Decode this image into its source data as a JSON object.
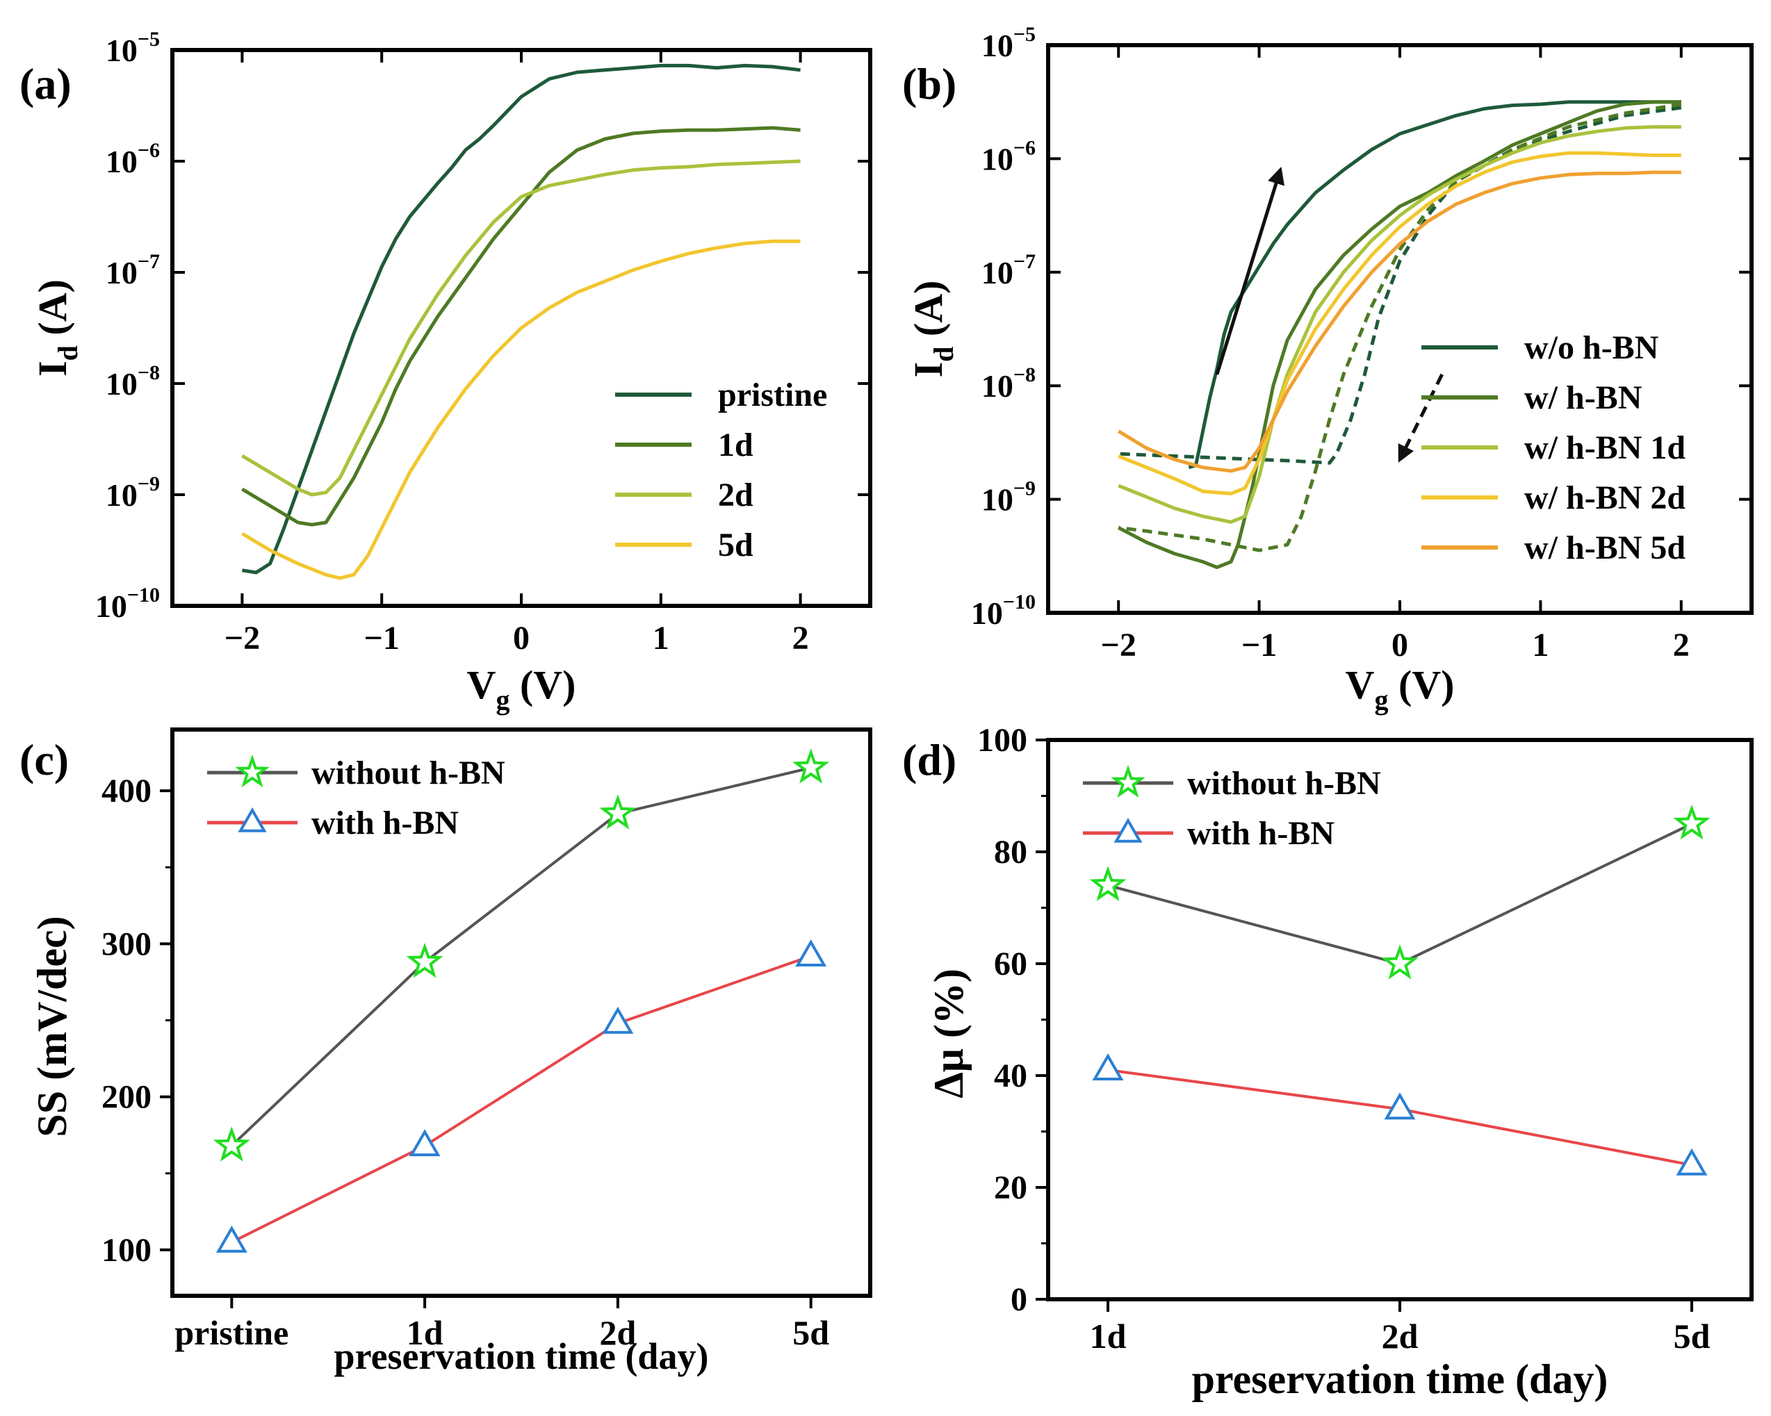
{
  "chart_data": [
    {
      "panel": "a",
      "label": "(a)",
      "type": "line",
      "yscale": "log",
      "xlabel": "V",
      "xlabel_sub": "g",
      "xlabel_unit": " (V)",
      "ylabel": "I",
      "ylabel_sub": "d",
      "ylabel_unit": " (A)",
      "xlim": [
        -2.5,
        2.5
      ],
      "ylim_exp": [
        -10,
        -5
      ],
      "xticks": [
        -2,
        -1,
        0,
        1,
        2
      ],
      "xtick_labels": [
        "−2",
        "−1",
        "0",
        "1",
        "2"
      ],
      "yticks_exp": [
        -10,
        -9,
        -8,
        -7,
        -6,
        -5
      ],
      "ytick_base": "10",
      "ytick_exps": [
        "−10",
        "−9",
        "−8",
        "−7",
        "−6",
        "−5"
      ],
      "legend_position": "lower-right",
      "series": [
        {
          "name": "pristine",
          "color": "#1e5a3a",
          "dashed": false,
          "x": [
            -2.0,
            -1.9,
            -1.8,
            -1.7,
            -1.6,
            -1.5,
            -1.4,
            -1.3,
            -1.2,
            -1.1,
            -1.0,
            -0.9,
            -0.8,
            -0.7,
            -0.6,
            -0.5,
            -0.4,
            -0.3,
            -0.2,
            -0.1,
            0.0,
            0.2,
            0.4,
            0.6,
            0.8,
            1.0,
            1.2,
            1.4,
            1.6,
            1.8,
            2.0
          ],
          "logy": [
            -9.68,
            -9.7,
            -9.62,
            -9.3,
            -8.95,
            -8.6,
            -8.25,
            -7.9,
            -7.55,
            -7.25,
            -6.95,
            -6.7,
            -6.5,
            -6.35,
            -6.2,
            -6.06,
            -5.9,
            -5.8,
            -5.68,
            -5.55,
            -5.42,
            -5.26,
            -5.2,
            -5.18,
            -5.16,
            -5.14,
            -5.14,
            -5.16,
            -5.14,
            -5.15,
            -5.18
          ]
        },
        {
          "name": "1d",
          "color": "#4e7a24",
          "dashed": false,
          "x": [
            -2.0,
            -1.8,
            -1.6,
            -1.5,
            -1.4,
            -1.3,
            -1.2,
            -1.1,
            -1.0,
            -0.9,
            -0.8,
            -0.6,
            -0.4,
            -0.2,
            0.0,
            0.2,
            0.4,
            0.6,
            0.8,
            1.0,
            1.2,
            1.4,
            1.6,
            1.8,
            2.0
          ],
          "logy": [
            -8.95,
            -9.1,
            -9.25,
            -9.27,
            -9.25,
            -9.05,
            -8.85,
            -8.6,
            -8.35,
            -8.05,
            -7.8,
            -7.4,
            -7.05,
            -6.7,
            -6.4,
            -6.1,
            -5.9,
            -5.8,
            -5.75,
            -5.73,
            -5.72,
            -5.72,
            -5.71,
            -5.7,
            -5.72
          ]
        },
        {
          "name": "2d",
          "color": "#a9c23c",
          "dashed": false,
          "x": [
            -2.0,
            -1.8,
            -1.6,
            -1.5,
            -1.4,
            -1.3,
            -1.2,
            -1.1,
            -1.0,
            -0.9,
            -0.8,
            -0.6,
            -0.4,
            -0.2,
            0.0,
            0.2,
            0.4,
            0.6,
            0.8,
            1.0,
            1.2,
            1.4,
            1.6,
            1.8,
            2.0
          ],
          "logy": [
            -8.65,
            -8.8,
            -8.95,
            -9.0,
            -8.98,
            -8.85,
            -8.6,
            -8.35,
            -8.1,
            -7.85,
            -7.6,
            -7.2,
            -6.85,
            -6.55,
            -6.32,
            -6.22,
            -6.17,
            -6.12,
            -6.08,
            -6.06,
            -6.05,
            -6.03,
            -6.02,
            -6.01,
            -6.0
          ]
        },
        {
          "name": "5d",
          "color": "#f2c62e",
          "dashed": false,
          "x": [
            -2.0,
            -1.8,
            -1.6,
            -1.4,
            -1.3,
            -1.2,
            -1.1,
            -1.0,
            -0.9,
            -0.8,
            -0.6,
            -0.4,
            -0.2,
            0.0,
            0.2,
            0.4,
            0.6,
            0.8,
            1.0,
            1.2,
            1.4,
            1.6,
            1.8,
            2.0
          ],
          "logy": [
            -9.35,
            -9.5,
            -9.62,
            -9.72,
            -9.75,
            -9.72,
            -9.55,
            -9.3,
            -9.05,
            -8.8,
            -8.4,
            -8.05,
            -7.75,
            -7.5,
            -7.32,
            -7.18,
            -7.08,
            -6.98,
            -6.9,
            -6.83,
            -6.78,
            -6.74,
            -6.72,
            -6.72
          ]
        }
      ]
    },
    {
      "panel": "b",
      "label": "(b)",
      "type": "line",
      "yscale": "log",
      "xlabel": "V",
      "xlabel_sub": "g",
      "xlabel_unit": " (V)",
      "ylabel": "I",
      "ylabel_sub": "d",
      "ylabel_unit": " (A)",
      "xlim": [
        -2.5,
        2.5
      ],
      "ylim_exp": [
        -10,
        -5
      ],
      "xticks": [
        -2,
        -1,
        0,
        1,
        2
      ],
      "xtick_labels": [
        "−2",
        "−1",
        "0",
        "1",
        "2"
      ],
      "yticks_exp": [
        -10,
        -9,
        -8,
        -7,
        -6,
        -5
      ],
      "ytick_base": "10",
      "ytick_exps": [
        "−10",
        "−9",
        "−8",
        "−7",
        "−6",
        "−5"
      ],
      "legend_position": "lower-right",
      "annotations": [
        {
          "kind": "arrow",
          "style": "solid",
          "from": [
            -1.3,
            -7.9
          ],
          "to": [
            -0.85,
            -6.1
          ]
        },
        {
          "kind": "arrow",
          "style": "dashed",
          "from": [
            0.3,
            -7.9
          ],
          "to": [
            0.0,
            -8.65
          ]
        }
      ],
      "series": [
        {
          "name": "w/o h-BN",
          "color": "#1e5a3a",
          "dashed": false,
          "x": [
            -1.5,
            -1.45,
            -1.4,
            -1.35,
            -1.3,
            -1.25,
            -1.2,
            -1.1,
            -1.0,
            -0.9,
            -0.8,
            -0.6,
            -0.4,
            -0.2,
            0.0,
            0.2,
            0.4,
            0.6,
            0.8,
            1.0,
            1.2,
            1.4,
            1.6,
            1.8,
            2.0
          ],
          "logy": [
            -8.72,
            -8.7,
            -8.4,
            -8.1,
            -7.85,
            -7.55,
            -7.35,
            -7.15,
            -6.95,
            -6.75,
            -6.58,
            -6.3,
            -6.1,
            -5.92,
            -5.78,
            -5.7,
            -5.62,
            -5.56,
            -5.53,
            -5.52,
            -5.5,
            -5.5,
            -5.5,
            -5.5,
            -5.5
          ]
        },
        {
          "name": "w/o h-BN (reverse)",
          "color": "#1e5a3a",
          "dashed": true,
          "in_legend": false,
          "x": [
            2.0,
            1.6,
            1.2,
            0.8,
            0.4,
            0.2,
            0.0,
            -0.15,
            -0.25,
            -0.35,
            -0.45,
            -0.5,
            -0.8,
            -1.2,
            -1.6,
            -2.0
          ],
          "logy": [
            -5.55,
            -5.62,
            -5.76,
            -5.92,
            -6.2,
            -6.5,
            -6.9,
            -7.4,
            -7.9,
            -8.3,
            -8.6,
            -8.68,
            -8.66,
            -8.64,
            -8.62,
            -8.6
          ]
        },
        {
          "name": "w/ h-BN",
          "color": "#4e7a24",
          "dashed": false,
          "x": [
            -2.0,
            -1.8,
            -1.6,
            -1.4,
            -1.3,
            -1.2,
            -1.15,
            -1.1,
            -1.05,
            -1.0,
            -0.9,
            -0.8,
            -0.6,
            -0.4,
            -0.2,
            0.0,
            0.2,
            0.4,
            0.6,
            0.8,
            1.0,
            1.2,
            1.4,
            1.6,
            1.8,
            2.0
          ],
          "logy": [
            -9.25,
            -9.38,
            -9.48,
            -9.55,
            -9.6,
            -9.55,
            -9.4,
            -9.15,
            -8.9,
            -8.6,
            -8.0,
            -7.6,
            -7.15,
            -6.85,
            -6.62,
            -6.42,
            -6.3,
            -6.15,
            -6.02,
            -5.88,
            -5.78,
            -5.68,
            -5.58,
            -5.52,
            -5.5,
            -5.5
          ]
        },
        {
          "name": "w/ h-BN (reverse)",
          "color": "#4e7a24",
          "dashed": true,
          "in_legend": false,
          "x": [
            2.0,
            1.6,
            1.2,
            0.8,
            0.4,
            0.2,
            0.0,
            -0.2,
            -0.4,
            -0.5,
            -0.6,
            -0.7,
            -0.8,
            -1.0,
            -1.4,
            -1.8,
            -2.0
          ],
          "logy": [
            -5.52,
            -5.6,
            -5.72,
            -5.92,
            -6.2,
            -6.45,
            -6.8,
            -7.3,
            -7.9,
            -8.3,
            -8.75,
            -9.15,
            -9.4,
            -9.45,
            -9.35,
            -9.28,
            -9.25
          ]
        },
        {
          "name": "w/ h-BN 1d",
          "color": "#a9c23c",
          "dashed": false,
          "x": [
            -2.0,
            -1.8,
            -1.6,
            -1.4,
            -1.2,
            -1.1,
            -1.0,
            -0.9,
            -0.8,
            -0.6,
            -0.4,
            -0.2,
            0.0,
            0.2,
            0.4,
            0.6,
            0.8,
            1.0,
            1.2,
            1.4,
            1.6,
            1.8,
            2.0
          ],
          "logy": [
            -8.88,
            -8.98,
            -9.08,
            -9.15,
            -9.2,
            -9.15,
            -8.8,
            -8.3,
            -7.9,
            -7.35,
            -7.0,
            -6.72,
            -6.5,
            -6.32,
            -6.18,
            -6.06,
            -5.95,
            -5.86,
            -5.8,
            -5.76,
            -5.73,
            -5.72,
            -5.72
          ]
        },
        {
          "name": "w/ h-BN 2d",
          "color": "#f2c62e",
          "dashed": false,
          "x": [
            -2.0,
            -1.8,
            -1.6,
            -1.4,
            -1.2,
            -1.1,
            -1.0,
            -0.9,
            -0.8,
            -0.6,
            -0.4,
            -0.2,
            0.0,
            0.2,
            0.4,
            0.6,
            0.8,
            1.0,
            1.2,
            1.4,
            1.6,
            1.8,
            2.0
          ],
          "logy": [
            -8.62,
            -8.72,
            -8.82,
            -8.93,
            -8.95,
            -8.9,
            -8.65,
            -8.3,
            -7.95,
            -7.5,
            -7.15,
            -6.85,
            -6.6,
            -6.4,
            -6.24,
            -6.12,
            -6.03,
            -5.98,
            -5.95,
            -5.95,
            -5.96,
            -5.97,
            -5.97
          ]
        },
        {
          "name": "w/ h-BN 5d",
          "color": "#f0a030",
          "dashed": false,
          "x": [
            -2.0,
            -1.8,
            -1.6,
            -1.4,
            -1.2,
            -1.1,
            -1.0,
            -0.9,
            -0.8,
            -0.6,
            -0.4,
            -0.2,
            0.0,
            0.2,
            0.4,
            0.6,
            0.8,
            1.0,
            1.2,
            1.4,
            1.6,
            1.8,
            2.0
          ],
          "logy": [
            -8.4,
            -8.55,
            -8.65,
            -8.72,
            -8.75,
            -8.72,
            -8.55,
            -8.3,
            -8.05,
            -7.65,
            -7.3,
            -7.0,
            -6.75,
            -6.55,
            -6.4,
            -6.3,
            -6.22,
            -6.17,
            -6.14,
            -6.13,
            -6.13,
            -6.12,
            -6.12
          ]
        }
      ]
    },
    {
      "panel": "c",
      "label": "(c)",
      "type": "line",
      "xlabel": "preservation time (day)",
      "ylabel": "SS (mV/dec)",
      "categories": [
        "pristine",
        "1d",
        "2d",
        "5d"
      ],
      "ylim": [
        70,
        440
      ],
      "yticks": [
        100,
        200,
        300,
        400
      ],
      "legend_position": "top-left",
      "series": [
        {
          "name": "without h-BN",
          "color": "#555555",
          "marker": "star",
          "marker_color": "#22dd22",
          "values": [
            168,
            288,
            385,
            415
          ]
        },
        {
          "name": "with h-BN",
          "color": "#e8464a",
          "marker": "triangle",
          "marker_color": "#2a7fd4",
          "values": [
            105,
            168,
            248,
            292
          ]
        }
      ]
    },
    {
      "panel": "d",
      "label": "(d)",
      "type": "line",
      "xlabel": "preservation time (day)",
      "ylabel": "Δμ (%)",
      "categories": [
        "1d",
        "2d",
        "5d"
      ],
      "ylim": [
        0,
        100
      ],
      "yticks": [
        0,
        20,
        40,
        60,
        80,
        100
      ],
      "legend_position": "top-left",
      "series": [
        {
          "name": "without h-BN",
          "color": "#555555",
          "marker": "star",
          "marker_color": "#22dd22",
          "values": [
            74,
            60,
            85
          ]
        },
        {
          "name": "with h-BN",
          "color": "#e8464a",
          "marker": "triangle",
          "marker_color": "#2a7fd4",
          "values": [
            41,
            34,
            24
          ]
        }
      ]
    }
  ]
}
